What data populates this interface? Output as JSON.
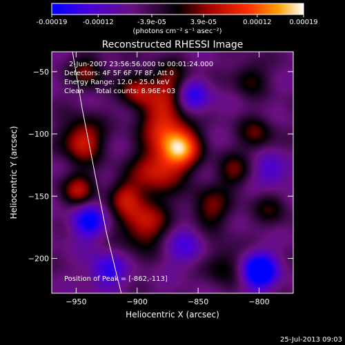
{
  "colorbar": {
    "ticks": [
      "-0.00019",
      "-0.00012",
      "-3.9e-05",
      "3.9e-05",
      "0.00012",
      "0.00019"
    ],
    "tick_values": [
      -0.00019,
      -0.00012,
      -3.9e-05,
      3.9e-05,
      0.00012,
      0.00019
    ],
    "min": -0.00019,
    "max": 0.00019,
    "unit_label": "(photons cm⁻² s⁻¹ asec⁻²)",
    "colors": [
      "#0000ff",
      "#5a00c8",
      "#6a1080",
      "#000000",
      "#a00000",
      "#ff3000",
      "#ffa000",
      "#ffffff"
    ]
  },
  "chart_data": {
    "type": "heatmap",
    "title": "Reconstructed RHESSI Image",
    "xlabel": "Heliocentric X (arcsec)",
    "ylabel": "Heliocentric Y (arcsec)",
    "xlim": [
      -970,
      -772
    ],
    "ylim": [
      -228,
      -34
    ],
    "xticks": [
      -950,
      -900,
      -850,
      -800
    ],
    "yticks": [
      -50,
      -100,
      -150,
      -200
    ],
    "limb": [
      [
        -953,
        -34
      ],
      [
        -945,
        -80
      ],
      [
        -935,
        -130
      ],
      [
        -925,
        -180
      ],
      [
        -913,
        -228
      ]
    ],
    "blobs": [
      {
        "x": -865,
        "y": -112,
        "amp": 0.00019,
        "r": 12
      },
      {
        "x": -878,
        "y": -90,
        "amp": 0.00013,
        "r": 14
      },
      {
        "x": -885,
        "y": -130,
        "amp": 0.00012,
        "r": 14
      },
      {
        "x": -872,
        "y": -60,
        "amp": 0.0001,
        "r": 12
      },
      {
        "x": -900,
        "y": -65,
        "amp": 0.00011,
        "r": 10
      },
      {
        "x": -945,
        "y": -105,
        "amp": 0.00014,
        "r": 12
      },
      {
        "x": -948,
        "y": -145,
        "amp": 0.00011,
        "r": 10
      },
      {
        "x": -940,
        "y": -50,
        "amp": 9e-05,
        "r": 10
      },
      {
        "x": -895,
        "y": -172,
        "amp": 0.00013,
        "r": 14
      },
      {
        "x": -910,
        "y": -150,
        "amp": 9e-05,
        "r": 10
      },
      {
        "x": -820,
        "y": -130,
        "amp": 8e-05,
        "r": 10
      },
      {
        "x": -840,
        "y": -160,
        "amp": 9e-05,
        "r": 12
      },
      {
        "x": -802,
        "y": -100,
        "amp": 8e-05,
        "r": 10
      },
      {
        "x": -808,
        "y": -55,
        "amp": 7e-05,
        "r": 10
      },
      {
        "x": -830,
        "y": -205,
        "amp": 7e-05,
        "r": 12
      },
      {
        "x": -790,
        "y": -160,
        "amp": 6e-05,
        "r": 10
      },
      {
        "x": -800,
        "y": -210,
        "amp": -0.00019,
        "r": 10
      },
      {
        "x": -940,
        "y": -170,
        "amp": -0.00013,
        "r": 10
      },
      {
        "x": -855,
        "y": -70,
        "amp": -0.00012,
        "r": 10
      },
      {
        "x": -925,
        "y": -210,
        "amp": -0.0001,
        "r": 10
      },
      {
        "x": -790,
        "y": -130,
        "amp": -8e-05,
        "r": 10
      },
      {
        "x": -860,
        "y": -190,
        "amp": -7e-05,
        "r": 12
      }
    ],
    "annotations": {
      "time": "2-Jun-2007 23:56:56.000 to 00:01:24.000",
      "detectors": "Detectors: 4F 5F 6F 7F 8F, Att 0",
      "energy": "Energy Range: 12.0 - 25.0 keV",
      "method": "Clean",
      "counts": "Total counts: 8.96E+03",
      "peak": "Position of Peak = [-862,-113]"
    }
  },
  "footer": {
    "timestamp": "25-Jul-2013 09:03"
  }
}
